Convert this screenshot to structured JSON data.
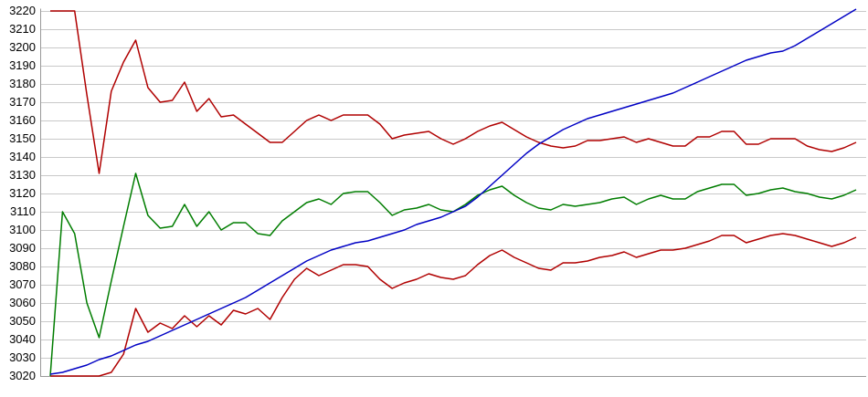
{
  "chart_data": {
    "type": "line",
    "title": "",
    "xlabel": "",
    "ylabel": "",
    "x_axis": {
      "labels_visible": false,
      "points": 67
    },
    "y_axis": {
      "min": 3020,
      "max": 3220,
      "tick_step": 10,
      "tick_labels": [
        "3020",
        "3030",
        "3040",
        "3050",
        "3060",
        "3070",
        "3080",
        "3090",
        "3100",
        "3110",
        "3120",
        "3130",
        "3140",
        "3150",
        "3160",
        "3170",
        "3180",
        "3190",
        "3200",
        "3210",
        "3220"
      ]
    },
    "grid": "horizontal",
    "legend": "none",
    "colors": {
      "background": "#ffffff",
      "gridline": "#c9c9c9",
      "axis": "#999999",
      "red": "#b00000",
      "green": "#007d00",
      "blue": "#0000c4",
      "label_text": "#000000"
    },
    "series": [
      {
        "name": "upper-red-band",
        "color_key": "red",
        "values": [
          3220,
          3220,
          3220,
          3174,
          3131,
          3176,
          3192,
          3204,
          3178,
          3170,
          3171,
          3181,
          3165,
          3172,
          3162,
          3163,
          3158,
          3153,
          3148,
          3148,
          3154,
          3160,
          3163,
          3160,
          3163,
          3163,
          3163,
          3158,
          3150,
          3152,
          3153,
          3154,
          3150,
          3147,
          3150,
          3154,
          3157,
          3159,
          3155,
          3151,
          3148,
          3146,
          3145,
          3146,
          3149,
          3149,
          3150,
          3151,
          3148,
          3150,
          3148,
          3146,
          3146,
          3151,
          3151,
          3154,
          3154,
          3147,
          3147,
          3150,
          3150,
          3150,
          3146,
          3144,
          3143,
          3145,
          3148
        ]
      },
      {
        "name": "lower-red-band",
        "color_key": "red",
        "values": [
          3020,
          3020,
          3020,
          3020,
          3020,
          3022,
          3032,
          3057,
          3044,
          3049,
          3046,
          3053,
          3047,
          3053,
          3048,
          3056,
          3054,
          3057,
          3051,
          3063,
          3073,
          3079,
          3075,
          3078,
          3081,
          3081,
          3080,
          3073,
          3068,
          3071,
          3073,
          3076,
          3074,
          3073,
          3075,
          3081,
          3086,
          3089,
          3085,
          3082,
          3079,
          3078,
          3082,
          3082,
          3083,
          3085,
          3086,
          3088,
          3085,
          3087,
          3089,
          3089,
          3090,
          3092,
          3094,
          3097,
          3097,
          3093,
          3095,
          3097,
          3098,
          3097,
          3095,
          3093,
          3091,
          3093,
          3096
        ]
      },
      {
        "name": "middle-green-line",
        "color_key": "green",
        "values": [
          3020,
          3110,
          3098,
          3060,
          3041,
          3072,
          3102,
          3131,
          3108,
          3101,
          3102,
          3114,
          3102,
          3110,
          3100,
          3104,
          3104,
          3098,
          3097,
          3105,
          3110,
          3115,
          3117,
          3114,
          3120,
          3121,
          3121,
          3115,
          3108,
          3111,
          3112,
          3114,
          3111,
          3110,
          3114,
          3119,
          3122,
          3124,
          3119,
          3115,
          3112,
          3111,
          3114,
          3113,
          3114,
          3115,
          3117,
          3118,
          3114,
          3117,
          3119,
          3117,
          3117,
          3121,
          3123,
          3125,
          3125,
          3119,
          3120,
          3122,
          3123,
          3121,
          3120,
          3118,
          3117,
          3119,
          3122
        ]
      },
      {
        "name": "ascending-blue-line",
        "color_key": "blue",
        "values": [
          3021,
          3022,
          3024,
          3026,
          3029,
          3031,
          3034,
          3037,
          3039,
          3042,
          3045,
          3048,
          3051,
          3054,
          3057,
          3060,
          3063,
          3067,
          3071,
          3075,
          3079,
          3083,
          3086,
          3089,
          3091,
          3093,
          3094,
          3096,
          3098,
          3100,
          3103,
          3105,
          3107,
          3110,
          3113,
          3118,
          3124,
          3130,
          3136,
          3142,
          3147,
          3151,
          3155,
          3158,
          3161,
          3163,
          3165,
          3167,
          3169,
          3171,
          3173,
          3175,
          3178,
          3181,
          3184,
          3187,
          3190,
          3193,
          3195,
          3197,
          3198,
          3201,
          3205,
          3209,
          3213,
          3217,
          3221
        ]
      }
    ]
  }
}
